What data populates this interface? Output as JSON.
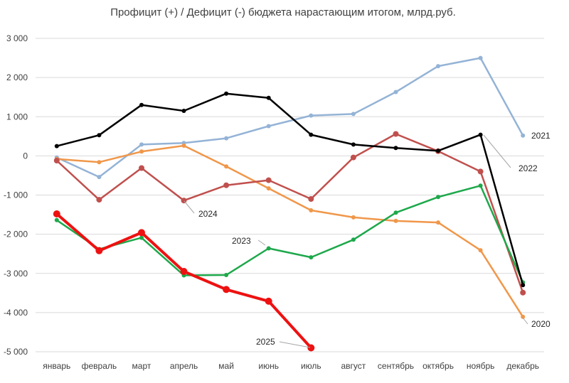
{
  "chart_data": {
    "type": "line",
    "title": "Профицит (+) / Дефицит (-) бюджета нарастающим итогом, млрд.руб.",
    "xlabel": "",
    "ylabel": "",
    "ylim": [
      -5000,
      3000
    ],
    "yticks": [
      3000,
      2000,
      1000,
      0,
      -1000,
      -2000,
      -3000,
      -4000,
      -5000
    ],
    "ytick_labels": [
      "3 000",
      "2 000",
      "1 000",
      "0",
      "-1 000",
      "-2 000",
      "-3 000",
      "-4 000",
      "-5 000"
    ],
    "grid": true,
    "legend": "inline labels",
    "categories": [
      "январь",
      "февраль",
      "март",
      "апрель",
      "май",
      "июнь",
      "июль",
      "август",
      "сентябрь",
      "октябрь",
      "ноябрь",
      "декабрь"
    ],
    "series": [
      {
        "name": "2020",
        "color": "#f0974a",
        "width": 2.5,
        "marker": 3,
        "values": [
          -80,
          -160,
          110,
          260,
          -270,
          -830,
          -1390,
          -1570,
          -1660,
          -1700,
          -2410,
          -4110
        ]
      },
      {
        "name": "2021",
        "color": "#94b3d6",
        "width": 2.5,
        "marker": 3,
        "values": [
          -40,
          -540,
          290,
          330,
          450,
          760,
          1030,
          1070,
          1630,
          2290,
          2500,
          520
        ]
      },
      {
        "name": "2022",
        "color": "#000000",
        "width": 2.5,
        "marker": 3,
        "values": [
          250,
          530,
          1300,
          1150,
          1590,
          1480,
          540,
          290,
          200,
          130,
          540,
          -3300
        ]
      },
      {
        "name": "2023",
        "color": "#1ea84b",
        "width": 2.5,
        "marker": 3,
        "values": [
          -1640,
          -2380,
          -2090,
          -3050,
          -3040,
          -2360,
          -2590,
          -2140,
          -1450,
          -1050,
          -760,
          -3230
        ]
      },
      {
        "name": "2024",
        "color": "#c0504d",
        "width": 2.5,
        "marker": 4,
        "values": [
          -120,
          -1120,
          -310,
          -1140,
          -750,
          -620,
          -1100,
          -40,
          560,
          120,
          -400,
          -3490
        ]
      },
      {
        "name": "2025",
        "color": "#ee1111",
        "width": 4,
        "marker": 5,
        "values": [
          -1480,
          -2420,
          -1960,
          -2950,
          -3410,
          -3710,
          -4900,
          null,
          null,
          null,
          null,
          null
        ]
      }
    ],
    "annotations": [
      {
        "text": "2021",
        "series": "2021"
      },
      {
        "text": "2022",
        "series": "2022"
      },
      {
        "text": "2024",
        "series": "2024"
      },
      {
        "text": "2023",
        "series": "2023"
      },
      {
        "text": "2025",
        "series": "2025"
      },
      {
        "text": "2020",
        "series": "2020"
      }
    ]
  }
}
